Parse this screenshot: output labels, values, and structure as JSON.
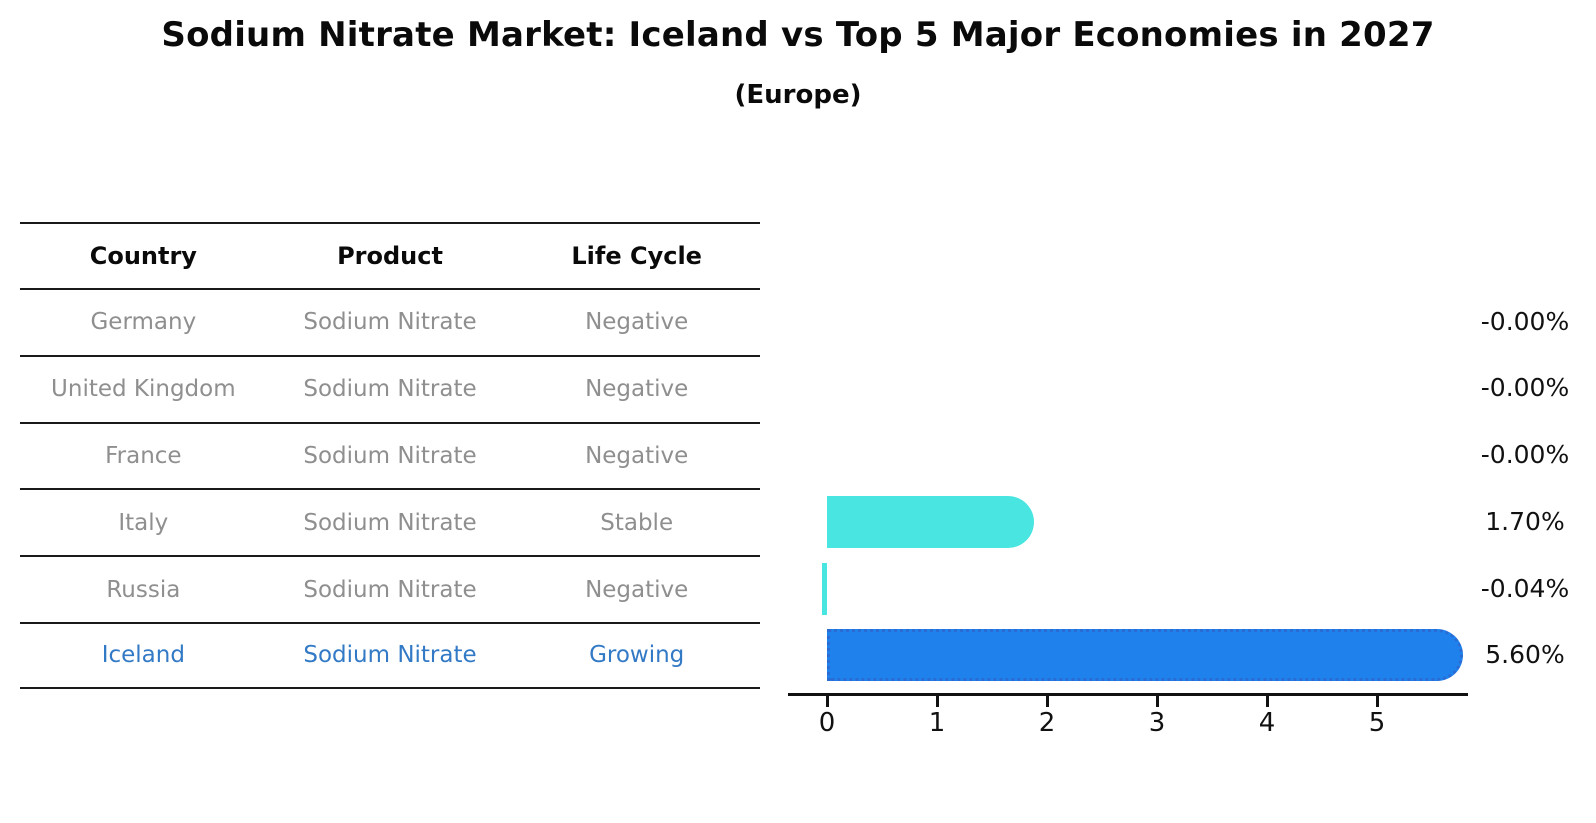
{
  "title": "Sodium Nitrate Market: Iceland vs Top 5 Major Economies in 2027",
  "subtitle": "(Europe)",
  "table": {
    "headers": [
      "Country",
      "Product",
      "Life Cycle"
    ],
    "rows": [
      {
        "country": "Germany",
        "product": "Sodium Nitrate",
        "life_cycle": "Negative"
      },
      {
        "country": "United Kingdom",
        "product": "Sodium Nitrate",
        "life_cycle": "Negative"
      },
      {
        "country": "France",
        "product": "Sodium Nitrate",
        "life_cycle": "Negative"
      },
      {
        "country": "Italy",
        "product": "Sodium Nitrate",
        "life_cycle": "Stable"
      },
      {
        "country": "Russia",
        "product": "Sodium Nitrate",
        "life_cycle": "Negative"
      },
      {
        "country": "Iceland",
        "product": "Sodium Nitrate",
        "life_cycle": "Growing"
      }
    ],
    "highlight_row": "Iceland"
  },
  "chart_data": {
    "type": "bar",
    "orientation": "horizontal",
    "title": "Sodium Nitrate Market: Iceland vs Top 5 Major Economies in 2027",
    "subtitle": "(Europe)",
    "categories": [
      "Germany",
      "United Kingdom",
      "France",
      "Italy",
      "Russia",
      "Iceland"
    ],
    "values": [
      -0.0,
      -0.0,
      -0.0,
      1.7,
      -0.04,
      5.6
    ],
    "value_labels": [
      "-0.00%",
      "-0.00%",
      "-0.00%",
      "1.70%",
      "-0.04%",
      "5.60%"
    ],
    "unit": "%",
    "xticks": [
      0,
      1,
      2,
      3,
      4,
      5
    ],
    "xlim": [
      0,
      5.83
    ],
    "grid": false,
    "legend": "none",
    "highlight_index": 5,
    "colors": {
      "bar_default": "#48e5e1",
      "bar_highlight": "#1f82ec",
      "bar_highlight_edge": "#2a6bd4",
      "highlight_text": "#337ac6",
      "row_text": "#8f8f8f",
      "axis": "#111111"
    }
  }
}
